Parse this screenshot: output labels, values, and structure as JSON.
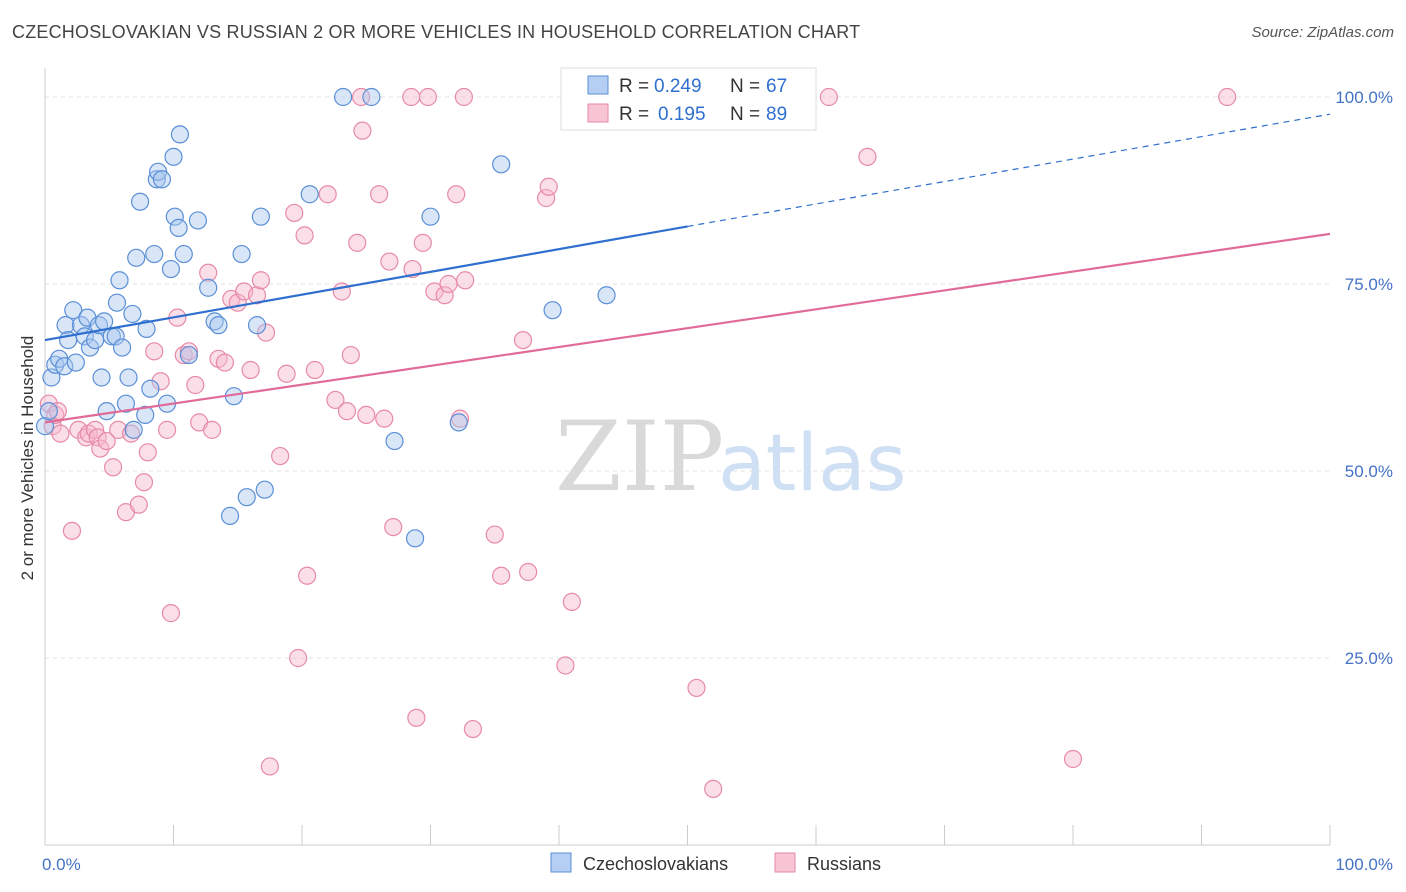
{
  "title": "CZECHOSLOVAKIAN VS RUSSIAN 2 OR MORE VEHICLES IN HOUSEHOLD CORRELATION CHART",
  "source": "Source: ZipAtlas.com",
  "watermark": {
    "zip": "ZIP",
    "atlas": "atlas"
  },
  "chart_data": {
    "type": "scatter",
    "title": "CZECHOSLOVAKIAN VS RUSSIAN 2 OR MORE VEHICLES IN HOUSEHOLD CORRELATION CHART",
    "xlabel": "",
    "ylabel": "2 or more Vehicles in Household",
    "xlim": [
      0,
      100
    ],
    "ylim": [
      0,
      100
    ],
    "x_ticks": [
      "0.0%",
      "100.0%"
    ],
    "y_ticks": [
      {
        "value": 100,
        "label": "100.0%"
      },
      {
        "value": 75,
        "label": "75.0%"
      },
      {
        "value": 50,
        "label": "50.0%"
      },
      {
        "value": 25,
        "label": "25.0%"
      }
    ],
    "grid": true,
    "legend_position": "top-center",
    "colors": {
      "czech_fill": "#a9c8f0",
      "czech_stroke": "#5b8fd6",
      "czech_line": "#2f6fce",
      "russian_fill": "#f7b8cc",
      "russian_stroke": "#e78aa8",
      "russian_line": "#e06b98",
      "tick": "#4472c4"
    },
    "stats": [
      {
        "r_label": "R =",
        "r": "0.249",
        "n_label": "N =",
        "n": "67"
      },
      {
        "r_label": "R =",
        "r": "0.195",
        "n_label": "N =",
        "n": "89"
      }
    ],
    "series": [
      {
        "name": "Czechoslovakians",
        "trend": {
          "x": [
            0,
            50
          ],
          "y": [
            67.5,
            82.7
          ],
          "dashed_to": [
            100,
            97.7
          ]
        },
        "points": [
          [
            0,
            56
          ],
          [
            0.3,
            58
          ],
          [
            0.5,
            62.5
          ],
          [
            0.8,
            64.2
          ],
          [
            1.1,
            65
          ],
          [
            1.5,
            64
          ],
          [
            1.6,
            69.5
          ],
          [
            1.8,
            67.5
          ],
          [
            2.2,
            71.5
          ],
          [
            2.4,
            64.5
          ],
          [
            2.8,
            69.5
          ],
          [
            3.1,
            68
          ],
          [
            3.3,
            70.5
          ],
          [
            3.5,
            66.5
          ],
          [
            3.9,
            67.5
          ],
          [
            4.2,
            69.5
          ],
          [
            4.4,
            62.5
          ],
          [
            4.6,
            70
          ],
          [
            4.8,
            58
          ],
          [
            5.2,
            68
          ],
          [
            5.5,
            68
          ],
          [
            5.6,
            72.5
          ],
          [
            5.8,
            75.5
          ],
          [
            6.0,
            66.5
          ],
          [
            6.3,
            59
          ],
          [
            6.5,
            62.5
          ],
          [
            6.8,
            71
          ],
          [
            6.9,
            55.5
          ],
          [
            7.1,
            78.5
          ],
          [
            7.4,
            86
          ],
          [
            7.8,
            57.5
          ],
          [
            7.9,
            69
          ],
          [
            8.2,
            61
          ],
          [
            8.5,
            79
          ],
          [
            8.7,
            89
          ],
          [
            8.8,
            90
          ],
          [
            9.1,
            89
          ],
          [
            9.5,
            59
          ],
          [
            9.8,
            77
          ],
          [
            10.0,
            92
          ],
          [
            10.1,
            84
          ],
          [
            10.4,
            82.5
          ],
          [
            10.5,
            95
          ],
          [
            10.8,
            79
          ],
          [
            11.2,
            65.5
          ],
          [
            11.9,
            83.5
          ],
          [
            12.7,
            74.5
          ],
          [
            13.2,
            70
          ],
          [
            13.5,
            69.5
          ],
          [
            14.4,
            44
          ],
          [
            14.7,
            60
          ],
          [
            15.3,
            79
          ],
          [
            15.7,
            46.5
          ],
          [
            16.5,
            69.5
          ],
          [
            16.8,
            84
          ],
          [
            17.1,
            47.5
          ],
          [
            20.6,
            87
          ],
          [
            23.2,
            100
          ],
          [
            25.4,
            100
          ],
          [
            27.2,
            54
          ],
          [
            28.8,
            41
          ],
          [
            30.0,
            84
          ],
          [
            32.2,
            56.5
          ],
          [
            35.5,
            91
          ],
          [
            39.5,
            71.5
          ],
          [
            43.7,
            73.5
          ],
          [
            50.0,
            100
          ]
        ]
      },
      {
        "name": "Russians",
        "trend": {
          "x": [
            0,
            100
          ],
          "y": [
            56.5,
            81.7
          ]
        },
        "points": [
          [
            0.3,
            59
          ],
          [
            0.6,
            56
          ],
          [
            0.8,
            57.5
          ],
          [
            1.0,
            58
          ],
          [
            1.2,
            55
          ],
          [
            2.1,
            42
          ],
          [
            2.6,
            55.5
          ],
          [
            3.2,
            54.5
          ],
          [
            3.4,
            55
          ],
          [
            3.9,
            55.5
          ],
          [
            4.1,
            54.5
          ],
          [
            4.3,
            53
          ],
          [
            4.8,
            54
          ],
          [
            5.3,
            50.5
          ],
          [
            5.7,
            55.5
          ],
          [
            6.3,
            44.5
          ],
          [
            6.7,
            55
          ],
          [
            7.3,
            45.5
          ],
          [
            7.7,
            48.5
          ],
          [
            8.0,
            52.5
          ],
          [
            8.5,
            66
          ],
          [
            9.0,
            62
          ],
          [
            9.5,
            55.5
          ],
          [
            9.8,
            31
          ],
          [
            10.3,
            70.5
          ],
          [
            10.8,
            65.5
          ],
          [
            11.2,
            66
          ],
          [
            11.7,
            61.5
          ],
          [
            12.0,
            56.5
          ],
          [
            12.7,
            76.5
          ],
          [
            13.0,
            55.5
          ],
          [
            13.5,
            65
          ],
          [
            14.0,
            64.5
          ],
          [
            14.5,
            73
          ],
          [
            15.0,
            72.5
          ],
          [
            15.5,
            74
          ],
          [
            16.0,
            63.5
          ],
          [
            16.5,
            73.5
          ],
          [
            16.8,
            75.5
          ],
          [
            17.2,
            68.5
          ],
          [
            17.5,
            10.5
          ],
          [
            18.3,
            52
          ],
          [
            18.8,
            63
          ],
          [
            19.4,
            84.5
          ],
          [
            19.7,
            25
          ],
          [
            20.2,
            81.5
          ],
          [
            20.4,
            36
          ],
          [
            21.0,
            63.5
          ],
          [
            22.0,
            87
          ],
          [
            22.6,
            59.5
          ],
          [
            23.1,
            74
          ],
          [
            23.5,
            58
          ],
          [
            23.8,
            65.5
          ],
          [
            24.3,
            80.5
          ],
          [
            24.7,
            95.5
          ],
          [
            25.0,
            57.5
          ],
          [
            26.0,
            87
          ],
          [
            26.4,
            57
          ],
          [
            26.8,
            78
          ],
          [
            27.1,
            42.5
          ],
          [
            28.6,
            77
          ],
          [
            28.9,
            17
          ],
          [
            29.4,
            80.5
          ],
          [
            29.8,
            100
          ],
          [
            30.3,
            74
          ],
          [
            31.1,
            73.5
          ],
          [
            31.4,
            75
          ],
          [
            32.0,
            87
          ],
          [
            32.7,
            75.5
          ],
          [
            33.3,
            15.5
          ],
          [
            35.0,
            41.5
          ],
          [
            35.5,
            36
          ],
          [
            37.2,
            67.5
          ],
          [
            37.6,
            36.5
          ],
          [
            39.0,
            86.5
          ],
          [
            39.2,
            88
          ],
          [
            40.5,
            24
          ],
          [
            41.0,
            32.5
          ],
          [
            50.0,
            100
          ],
          [
            50.7,
            21
          ],
          [
            52.0,
            7.5
          ],
          [
            61.0,
            100
          ],
          [
            64.0,
            92
          ],
          [
            80.0,
            11.5
          ],
          [
            92.0,
            100
          ],
          [
            28.5,
            100
          ],
          [
            32.3,
            57
          ],
          [
            32.6,
            100
          ],
          [
            24.6,
            100
          ]
        ]
      }
    ]
  }
}
